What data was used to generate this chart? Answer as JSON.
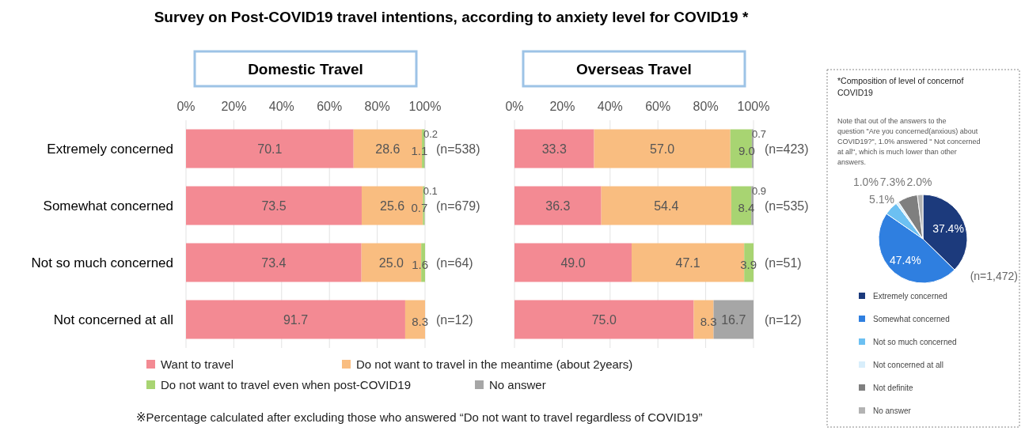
{
  "chart_data": [
    {
      "type": "bar",
      "orientation": "horizontal",
      "stacked": true,
      "title": "Survey on Post-COVID19 travel intentions, according to anxiety level for COVID19 *",
      "subtitle": "Domestic Travel",
      "categories": [
        "Extremely concerned",
        "Somewhat concerned",
        "Not so much concerned",
        "Not concerned at all"
      ],
      "series": [
        {
          "name": "Want to travel",
          "color": "#f38a93",
          "values": [
            70.1,
            73.5,
            73.4,
            91.7
          ],
          "value_labels": [
            "70.1",
            "73.5",
            "73.4",
            "91.7"
          ]
        },
        {
          "name": "Do not want to travel in the meantime (about 2years)",
          "color": "#f9bd80",
          "values": [
            28.6,
            25.6,
            25.0,
            8.3
          ],
          "value_labels": [
            "28.6",
            "25.6",
            "25.0",
            "8.3"
          ]
        },
        {
          "name": "Do not want to travel even when post-COVID19",
          "color": "#a8d472",
          "values": [
            1.1,
            0.7,
            1.6,
            null
          ],
          "value_labels": [
            "1.1",
            "0.7",
            "1.6",
            null
          ]
        },
        {
          "name": "No answer",
          "color": "#a6a6a6",
          "values": [
            0.2,
            0.1,
            null,
            null
          ],
          "value_labels": [
            "0.2",
            "0.1",
            null,
            null
          ]
        }
      ],
      "xlim": [
        0,
        100
      ],
      "xticks": [
        {
          "value": 0,
          "label": "0%"
        },
        {
          "value": 20,
          "label": "20%"
        },
        {
          "value": 40,
          "label": "40%"
        },
        {
          "value": 60,
          "label": "60%"
        },
        {
          "value": 80,
          "label": "80%"
        },
        {
          "value": 100,
          "label": "100%"
        }
      ],
      "grid": "x",
      "legend": "bottom",
      "annotations": [
        "(n=538)",
        "(n=679)",
        "(n=64)",
        "(n=12)",
        "※Percentage calculated after excluding those who answered “Do not want to travel regardless of COVID19”"
      ]
    },
    {
      "type": "bar",
      "orientation": "horizontal",
      "stacked": true,
      "subtitle": "Overseas Travel",
      "categories": [
        null,
        null,
        null,
        null
      ],
      "series": [
        {
          "color": "#f38a93",
          "values": [
            33.3,
            36.3,
            49.0,
            75.0
          ],
          "value_labels": [
            "33.3",
            "36.3",
            "49.0",
            "75.0"
          ]
        },
        {
          "color": "#f9bd80",
          "values": [
            57.0,
            54.4,
            47.1,
            8.3
          ],
          "value_labels": [
            "57.0",
            "54.4",
            "47.1",
            "8.3"
          ]
        },
        {
          "color": "#a8d472",
          "values": [
            9.0,
            8.4,
            3.9,
            null
          ],
          "value_labels": [
            "9.0",
            "8.4",
            "3.9",
            null
          ]
        },
        {
          "color": "#a6a6a6",
          "values": [
            0.7,
            0.9,
            null,
            16.7
          ],
          "value_labels": [
            "0.7",
            "0.9",
            null,
            "16.7"
          ]
        }
      ],
      "xlim": [
        0,
        100
      ],
      "xticks": [
        {
          "value": 0,
          "label": "0%"
        },
        {
          "value": 20,
          "label": "20%"
        },
        {
          "value": 40,
          "label": "40%"
        },
        {
          "value": 60,
          "label": "60%"
        },
        {
          "value": 80,
          "label": "80%"
        },
        {
          "value": 100,
          "label": "100%"
        }
      ],
      "grid": "x",
      "annotations": [
        "(n=423)",
        "(n=535)",
        "(n=51)",
        "(n=12)"
      ]
    },
    {
      "type": "pie",
      "title": "*Composition of level of concernof COVID19",
      "categories": [
        "Extremely concerned",
        "Somewhat concerned",
        "Not so much concerned",
        "Not concerned at all",
        "Not definite",
        "No answer"
      ],
      "values": [
        37.4,
        47.4,
        5.1,
        1.0,
        7.3,
        2.0
      ],
      "value_labels": [
        "37.4%",
        "47.4%",
        "5.1%",
        "1.0%",
        "7.3%",
        "2.0%"
      ],
      "colors": [
        "#1c3a7c",
        "#2f7fe0",
        "#6cc0f2",
        "#d8eefb",
        "#7f7f7f",
        "#b3b3b3"
      ],
      "legend": "bottom",
      "annotations": [
        "Note that out of the answers to the question \"Are you concerned(anxious) about COVID19?\", 1.0% answered \" Not concerned at all\", which is much lower than other answers.",
        "(n=1,472)"
      ]
    }
  ]
}
